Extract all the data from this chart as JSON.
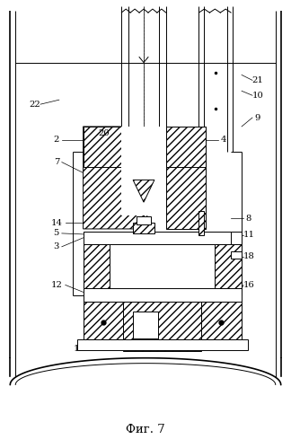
{
  "title": "Фиг. 7",
  "bg_color": "#ffffff",
  "line_color": "#000000",
  "fig_width": 3.24,
  "fig_height": 4.99,
  "dpi": 100
}
